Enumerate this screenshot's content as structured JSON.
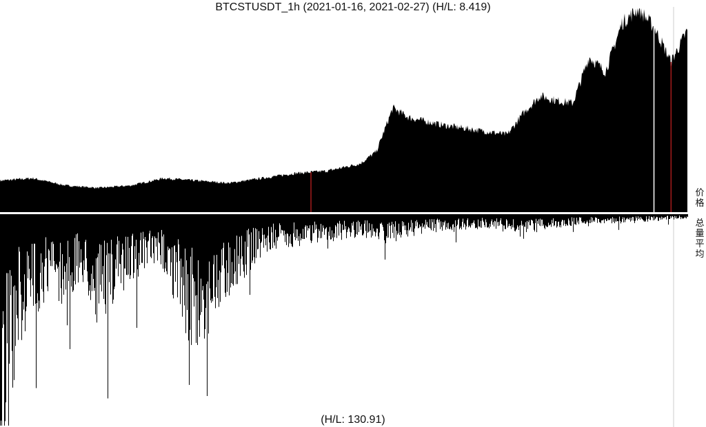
{
  "chart_title": "BTCSTUSDT_1h (2021-01-16, 2021-02-27) (H/L: 8.419)",
  "volume_caption": "(H/L: 130.91)",
  "price_axis_label": "价格",
  "volume_axis_label": "总量平均",
  "colors": {
    "fill": "#000000",
    "marker": "#cc2222",
    "divider": "#cccccc",
    "background": "#ffffff"
  },
  "chart_data": {
    "type": "area",
    "title": "BTCSTUSDT_1h (2021-01-16, 2021-02-27) (H/L: 8.419)",
    "interval": "1h",
    "date_range": [
      "2021-01-16",
      "2021-02-27"
    ],
    "grid": false,
    "x_axis": "date",
    "note_scale": "values are relative to the series low (1.0 = low, max = H/L ratio)",
    "series": [
      {
        "panel": "price",
        "label": "价格",
        "x": [
          "2021-01-16",
          "2021-01-18",
          "2021-01-20",
          "2021-01-22",
          "2021-01-24",
          "2021-01-26",
          "2021-01-28",
          "2021-01-30",
          "2021-02-01",
          "2021-02-03",
          "2021-02-05",
          "2021-02-07",
          "2021-02-08",
          "2021-02-09",
          "2021-02-10",
          "2021-02-12",
          "2021-02-14",
          "2021-02-16",
          "2021-02-17",
          "2021-02-18",
          "2021-02-19",
          "2021-02-20",
          "2021-02-21",
          "2021-02-22",
          "2021-02-23",
          "2021-02-24",
          "2021-02-25",
          "2021-02-26",
          "2021-02-27"
        ],
        "values": [
          1.3,
          1.4,
          1.1,
          1.0,
          1.1,
          1.4,
          1.3,
          1.2,
          1.4,
          1.6,
          1.7,
          2.0,
          2.5,
          4.3,
          3.9,
          3.6,
          3.4,
          3.2,
          4.1,
          4.8,
          4.6,
          4.5,
          6.4,
          5.8,
          7.8,
          8.4,
          7.6,
          6.2,
          7.5
        ],
        "h_l": 8.419
      },
      {
        "panel": "volume",
        "label": "总量平均",
        "x": [
          "2021-01-16",
          "2021-01-17",
          "2021-01-18",
          "2021-01-19",
          "2021-01-20",
          "2021-01-21",
          "2021-01-22",
          "2021-01-24",
          "2021-01-26",
          "2021-01-28",
          "2021-01-30",
          "2021-02-01",
          "2021-02-03",
          "2021-02-05",
          "2021-02-07",
          "2021-02-09",
          "2021-02-11",
          "2021-02-13",
          "2021-02-15",
          "2021-02-17",
          "2021-02-18",
          "2021-02-19",
          "2021-02-21",
          "2021-02-23",
          "2021-02-25",
          "2021-02-27"
        ],
        "values": [
          130.91,
          60,
          45,
          35,
          40,
          30,
          50,
          28,
          25,
          65,
          35,
          18,
          14,
          12,
          10,
          12,
          8,
          7,
          6,
          10,
          7,
          6,
          4,
          4,
          3,
          2
        ],
        "h_l": 130.91
      }
    ],
    "markers": [
      {
        "panel": "price",
        "x": "2021-02-04",
        "color": "#cc2222"
      },
      {
        "panel": "price",
        "x": "2021-02-26",
        "color": "#cc2222"
      }
    ]
  }
}
